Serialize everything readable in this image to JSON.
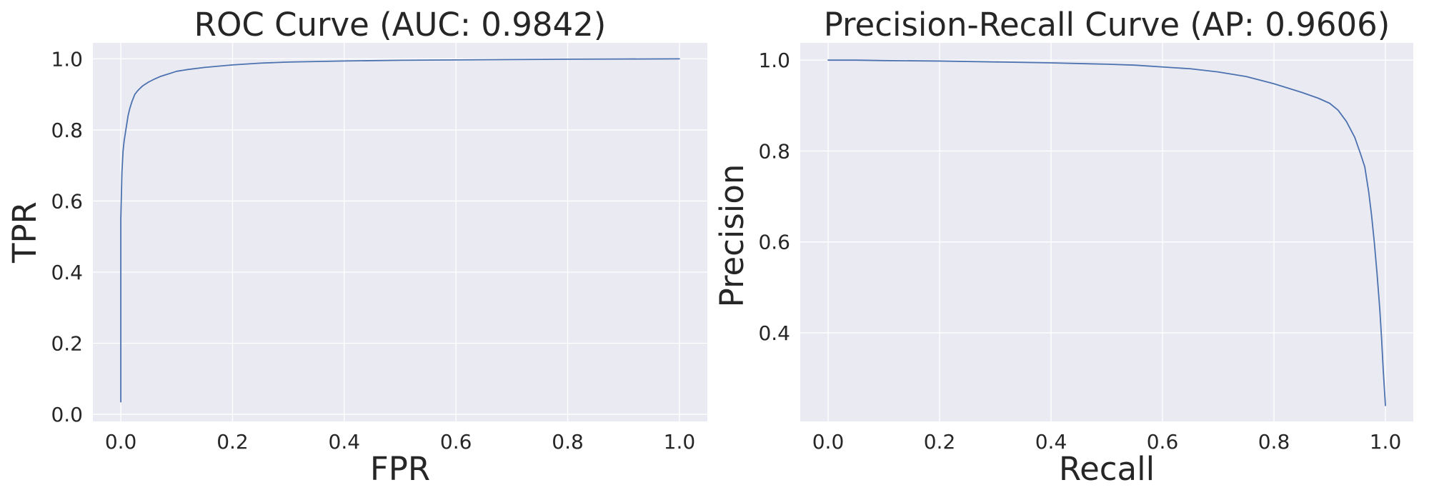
{
  "chart_data": [
    {
      "type": "line",
      "title": "ROC Curve (AUC: 0.9842)",
      "xlabel": "FPR",
      "ylabel": "TPR",
      "xlim": [
        -0.05,
        1.05
      ],
      "ylim": [
        -0.02,
        1.045
      ],
      "xticks": [
        0.0,
        0.2,
        0.4,
        0.6,
        0.8,
        1.0
      ],
      "xtick_labels": [
        "0.0",
        "0.2",
        "0.4",
        "0.6",
        "0.8",
        "1.0"
      ],
      "yticks": [
        0.0,
        0.2,
        0.4,
        0.6,
        0.8,
        1.0
      ],
      "ytick_labels": [
        "0.0",
        "0.2",
        "0.4",
        "0.6",
        "0.8",
        "1.0"
      ],
      "grid": true,
      "color": "#4c72b0",
      "background": "#eaeaf2",
      "series": [
        {
          "x": [
            0.0,
            0.0,
            0.002,
            0.004,
            0.006,
            0.008,
            0.01,
            0.013,
            0.016,
            0.02,
            0.025,
            0.03,
            0.035,
            0.04,
            0.05,
            0.06,
            0.07,
            0.08,
            0.09,
            0.1,
            0.12,
            0.15,
            0.2,
            0.25,
            0.3,
            0.4,
            0.5,
            0.6,
            0.7,
            0.8,
            0.9,
            1.0
          ],
          "y": [
            0.035,
            0.55,
            0.68,
            0.74,
            0.77,
            0.79,
            0.81,
            0.84,
            0.86,
            0.88,
            0.9,
            0.91,
            0.918,
            0.925,
            0.935,
            0.943,
            0.95,
            0.955,
            0.96,
            0.965,
            0.97,
            0.976,
            0.983,
            0.988,
            0.991,
            0.994,
            0.996,
            0.997,
            0.998,
            0.999,
            0.9995,
            1.0
          ]
        }
      ]
    },
    {
      "type": "line",
      "title": "Precision-Recall Curve (AP: 0.9606)",
      "xlabel": "Recall",
      "ylabel": "Precision",
      "xlim": [
        -0.05,
        1.05
      ],
      "ylim": [
        0.205,
        1.038
      ],
      "xticks": [
        0.0,
        0.2,
        0.4,
        0.6,
        0.8,
        1.0
      ],
      "xtick_labels": [
        "0.0",
        "0.2",
        "0.4",
        "0.6",
        "0.8",
        "1.0"
      ],
      "yticks": [
        0.4,
        0.6,
        0.8,
        1.0
      ],
      "ytick_labels": [
        "0.4",
        "0.6",
        "0.8",
        "1.0"
      ],
      "grid": true,
      "color": "#4c72b0",
      "background": "#eaeaf2",
      "series": [
        {
          "x": [
            0.0,
            0.05,
            0.1,
            0.2,
            0.3,
            0.4,
            0.5,
            0.55,
            0.6,
            0.65,
            0.7,
            0.75,
            0.8,
            0.85,
            0.88,
            0.9,
            0.915,
            0.93,
            0.945,
            0.955,
            0.963,
            0.97,
            0.975,
            0.98,
            0.985,
            0.99,
            0.993,
            0.996,
            0.998,
            1.0
          ],
          "y": [
            1.0,
            1.0,
            0.999,
            0.998,
            0.996,
            0.994,
            0.991,
            0.989,
            0.985,
            0.981,
            0.974,
            0.964,
            0.948,
            0.929,
            0.916,
            0.905,
            0.89,
            0.865,
            0.83,
            0.795,
            0.765,
            0.71,
            0.66,
            0.6,
            0.53,
            0.45,
            0.39,
            0.32,
            0.28,
            0.24
          ]
        }
      ]
    }
  ]
}
